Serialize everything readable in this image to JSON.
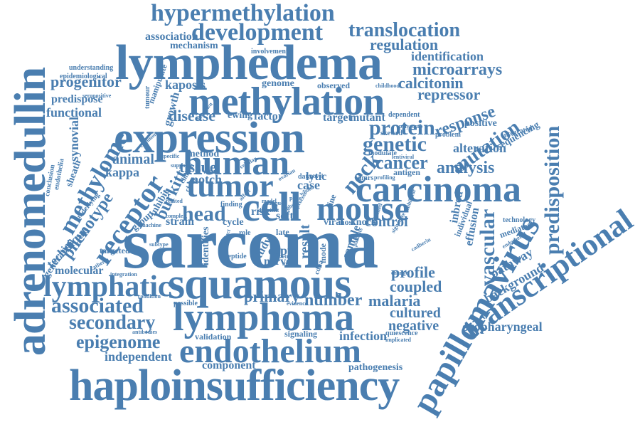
{
  "colors": {
    "word": "#4a7eb0",
    "background": "#ffffff"
  },
  "words": [
    {
      "text": "sarcoma",
      "size": "xxl",
      "rot": 0
    },
    {
      "text": "adrenomedullin",
      "size": "xl",
      "rot": -90
    },
    {
      "text": "lymphedema",
      "size": "xl",
      "rot": 0
    },
    {
      "text": "expression",
      "size": "xl",
      "rot": 0
    },
    {
      "text": "squamous",
      "size": "xl",
      "rot": 0
    },
    {
      "text": "haploinsufficiency",
      "size": "xl",
      "rot": 0
    },
    {
      "text": "methylation",
      "size": "xl",
      "rot": 0
    },
    {
      "text": "lymphoma",
      "size": "lg",
      "rot": 0
    },
    {
      "text": "endothelium",
      "size": "lg",
      "rot": 0
    },
    {
      "text": "human",
      "size": "lg",
      "rot": 0
    },
    {
      "text": "cell",
      "size": "lg",
      "rot": 0
    },
    {
      "text": "mouse",
      "size": "lg",
      "rot": 0
    },
    {
      "text": "tumor",
      "size": "lg",
      "rot": 0
    },
    {
      "text": "carcinoma",
      "size": "lg",
      "rot": 0
    },
    {
      "text": "papillomavirus",
      "size": "lg",
      "rot": -60
    },
    {
      "text": "transcriptional",
      "size": "lg",
      "rot": -35
    },
    {
      "text": "lymphatic",
      "size": "lg",
      "rot": 0
    },
    {
      "text": "hypermethylation",
      "size": "md",
      "rot": 0
    },
    {
      "text": "development",
      "size": "md",
      "rot": 0
    },
    {
      "text": "methylome",
      "size": "md",
      "rot": -60
    },
    {
      "text": "receptor",
      "size": "md",
      "rot": -55
    },
    {
      "text": "predisposition",
      "size": "md",
      "rot": -90
    },
    {
      "text": "associated",
      "size": "md",
      "rot": 0
    },
    {
      "text": "translocation",
      "size": "md",
      "rot": 0
    },
    {
      "text": "epigenome",
      "size": "md",
      "rot": 0
    },
    {
      "text": "vascular",
      "size": "md",
      "rot": -90
    },
    {
      "text": "secondary",
      "size": "md",
      "rot": 0
    },
    {
      "text": "head",
      "size": "md",
      "rot": 0
    },
    {
      "text": "genetic",
      "size": "md",
      "rot": 0
    },
    {
      "text": "protein",
      "size": "md",
      "rot": 0
    },
    {
      "text": "neck",
      "size": "md",
      "rot": -50
    },
    {
      "text": "mutation",
      "size": "md",
      "rot": -35
    },
    {
      "text": "response",
      "size": "sm",
      "rot": -20
    },
    {
      "text": "cancer",
      "size": "sm",
      "rot": 0
    },
    {
      "text": "analysis",
      "size": "sm",
      "rot": 0
    },
    {
      "text": "microarrays",
      "size": "sm",
      "rot": 0
    },
    {
      "text": "calcitonin",
      "size": "sm",
      "rot": 0
    },
    {
      "text": "repressor",
      "size": "sm",
      "rot": 0
    },
    {
      "text": "regulation",
      "size": "sm",
      "rot": 0
    },
    {
      "text": "identification",
      "size": "sm",
      "rot": 0
    },
    {
      "text": "progenitor",
      "size": "sm",
      "rot": 0
    },
    {
      "text": "kaposis",
      "size": "sm",
      "rot": 0
    },
    {
      "text": "disease",
      "size": "sm",
      "rot": 0
    },
    {
      "text": "tissue",
      "size": "sm",
      "rot": 0
    },
    {
      "text": "notch",
      "size": "sm",
      "rot": 0
    },
    {
      "text": "kappa",
      "size": "sm",
      "rot": 0
    },
    {
      "text": "animal",
      "size": "sm",
      "rot": 0
    },
    {
      "text": "phenotype",
      "size": "sm",
      "rot": -55
    },
    {
      "text": "burkitt",
      "size": "sm",
      "rot": -65
    },
    {
      "text": "technique",
      "size": "sm",
      "rot": -45
    },
    {
      "text": "profile",
      "size": "sm",
      "rot": 0
    },
    {
      "text": "coupled",
      "size": "sm",
      "rot": 0
    },
    {
      "text": "cultured",
      "size": "sm",
      "rot": 0
    },
    {
      "text": "negative",
      "size": "sm",
      "rot": 0
    },
    {
      "text": "malaria",
      "size": "sm",
      "rot": 0
    },
    {
      "text": "number",
      "size": "sm",
      "rot": 0
    },
    {
      "text": "primary",
      "size": "sm",
      "rot": 0
    },
    {
      "text": "infection",
      "size": "sm",
      "rot": 0
    },
    {
      "text": "independent",
      "size": "sm",
      "rot": 0
    },
    {
      "text": "control",
      "size": "sm",
      "rot": 0
    },
    {
      "text": "knock",
      "size": "sm",
      "rot": 0
    },
    {
      "text": "alteration",
      "size": "sm",
      "rot": 0
    },
    {
      "text": "background",
      "size": "sm",
      "rot": -30
    },
    {
      "text": "pathway",
      "size": "sm",
      "rot": -30
    },
    {
      "text": "oropharyngeal",
      "size": "sm",
      "rot": 0
    },
    {
      "text": "functional",
      "size": "sm",
      "rot": 0
    },
    {
      "text": "synovial",
      "size": "sm",
      "rot": -90
    },
    {
      "text": "molecular",
      "size": "sm",
      "rot": 0
    },
    {
      "text": "mechanism",
      "size": "sm",
      "rot": 0
    },
    {
      "text": "association",
      "size": "sm",
      "rot": 0
    },
    {
      "text": "predispose",
      "size": "sm",
      "rot": 0
    },
    {
      "text": "genome",
      "size": "sm",
      "rot": 0
    },
    {
      "text": "ewing",
      "size": "sm",
      "rot": 0
    },
    {
      "text": "factor",
      "size": "sm",
      "rot": 0
    },
    {
      "text": "target",
      "size": "sm",
      "rot": 0
    },
    {
      "text": "mutant",
      "size": "sm",
      "rot": 0
    },
    {
      "text": "growth",
      "size": "sm",
      "rot": -75
    },
    {
      "text": "positive",
      "size": "sm",
      "rot": 0
    },
    {
      "text": "sequencing",
      "size": "sm",
      "rot": -30
    },
    {
      "text": "effusion",
      "size": "sm",
      "rot": -80
    },
    {
      "text": "inbred",
      "size": "sm",
      "rot": -80
    },
    {
      "text": "component",
      "size": "sm",
      "rot": 0
    },
    {
      "text": "pathogenesis",
      "size": "sm",
      "rot": 0
    },
    {
      "text": "strain",
      "size": "sm",
      "rot": 0
    },
    {
      "text": "method",
      "size": "sm",
      "rot": 0
    },
    {
      "text": "cycle",
      "size": "sm",
      "rot": 0
    },
    {
      "text": "risk",
      "size": "sm",
      "rot": 0
    },
    {
      "text": "soft",
      "size": "sm",
      "rot": 0
    },
    {
      "text": "copy",
      "size": "sm",
      "rot": 0
    },
    {
      "text": "case",
      "size": "sm",
      "rot": 0
    },
    {
      "text": "lytic",
      "size": "sm",
      "rot": 0
    },
    {
      "text": "viral",
      "size": "sm",
      "rot": 0
    },
    {
      "text": "host",
      "size": "sm",
      "rot": 0
    },
    {
      "text": "nerve",
      "size": "sm",
      "rot": 0
    },
    {
      "text": "result",
      "size": "sm",
      "rot": -90
    },
    {
      "text": "study",
      "size": "sm",
      "rot": -60
    },
    {
      "text": "sample",
      "size": "sm",
      "rot": -70
    },
    {
      "text": "identifies",
      "size": "sm",
      "rot": -90
    },
    {
      "text": "group",
      "size": "sm",
      "rot": -40
    },
    {
      "text": "inhibit",
      "size": "sm",
      "rot": -60
    },
    {
      "text": "manipulate",
      "size": "sm",
      "rot": -70
    },
    {
      "text": "sheath",
      "size": "sm",
      "rot": -70
    },
    {
      "text": "generation",
      "size": "sm",
      "rot": -55
    },
    {
      "text": "targeted",
      "size": "sm",
      "rot": 0
    },
    {
      "text": "signaling",
      "size": "sm",
      "rot": 0
    },
    {
      "text": "validation",
      "size": "sm",
      "rot": 0
    },
    {
      "text": "finding",
      "size": "sm",
      "rot": 0
    },
    {
      "text": "antigen",
      "size": "sm",
      "rot": 0
    },
    {
      "text": "mediated",
      "size": "sm",
      "rot": -20
    },
    {
      "text": "individual",
      "size": "sm",
      "rot": -70
    },
    {
      "text": "technology",
      "size": "sm",
      "rot": 0
    },
    {
      "text": "integrated",
      "size": "sm",
      "rot": -15
    },
    {
      "text": "polycomb",
      "size": "sm",
      "rot": 0
    },
    {
      "text": "problem",
      "size": "sm",
      "rot": 0
    },
    {
      "text": "dependent",
      "size": "sm",
      "rot": 0
    },
    {
      "text": "observed",
      "size": "sm",
      "rot": 0
    },
    {
      "text": "involvement",
      "size": "sm",
      "rot": 0
    },
    {
      "text": "understanding",
      "size": "sm",
      "rot": 0
    },
    {
      "text": "epidemiological",
      "size": "sm",
      "rot": 0
    },
    {
      "text": "tumour",
      "size": "sm",
      "rot": -90
    },
    {
      "text": "seropositive",
      "size": "sm",
      "rot": 0
    },
    {
      "text": "childhood",
      "size": "sm",
      "rot": 0
    },
    {
      "text": "skewed",
      "size": "sm",
      "rot": 0
    },
    {
      "text": "conclusion",
      "size": "sm",
      "rot": -80
    },
    {
      "text": "endothelia",
      "size": "sm",
      "rot": -80
    },
    {
      "text": "underlying",
      "size": "sm",
      "rot": -50
    },
    {
      "text": "specific",
      "size": "sm",
      "rot": 0
    },
    {
      "text": "support",
      "size": "sm",
      "rot": 0
    },
    {
      "text": "common",
      "size": "sm",
      "rot": -40
    },
    {
      "text": "child",
      "size": "sm",
      "rot": -60
    },
    {
      "text": "virus",
      "size": "sm",
      "rot": 0
    },
    {
      "text": "data",
      "size": "sm",
      "rot": 0
    },
    {
      "text": "novel",
      "size": "sm",
      "rot": 0
    },
    {
      "text": "dmrs",
      "size": "sm",
      "rot": 0
    },
    {
      "text": "profiling",
      "size": "sm",
      "rot": 0
    },
    {
      "text": "modulate",
      "size": "sm",
      "rot": 0
    },
    {
      "text": "lentiviral",
      "size": "sm",
      "rot": 0
    },
    {
      "text": "line",
      "size": "sm",
      "rot": -70
    },
    {
      "text": "late",
      "size": "sm",
      "rot": 0
    },
    {
      "text": "role",
      "size": "sm",
      "rot": 0
    },
    {
      "text": "mode",
      "size": "sm",
      "rot": -90
    },
    {
      "text": "cdna",
      "size": "sm",
      "rot": -70
    },
    {
      "text": "myps",
      "size": "sm",
      "rot": 0
    },
    {
      "text": "better",
      "size": "sm",
      "rot": 0
    },
    {
      "text": "peptide",
      "size": "sm",
      "rot": 0
    },
    {
      "text": "distinct",
      "size": "sm",
      "rot": -70
    },
    {
      "text": "subtype",
      "size": "sm",
      "rot": 0
    },
    {
      "text": "machine",
      "size": "sm",
      "rot": 0
    },
    {
      "text": "catherin",
      "size": "sm",
      "rot": -30
    },
    {
      "text": "integration",
      "size": "sm",
      "rot": 0
    },
    {
      "text": "condition",
      "size": "sm",
      "rot": 0
    },
    {
      "text": "possible",
      "size": "sm",
      "rot": 0
    },
    {
      "text": "antibodies",
      "size": "sm",
      "rot": 0
    },
    {
      "text": "evidence",
      "size": "sm",
      "rot": 0
    },
    {
      "text": "quiescence",
      "size": "sm",
      "rot": 0
    },
    {
      "text": "implicated",
      "size": "sm",
      "rot": 0
    },
    {
      "text": "change",
      "size": "sm",
      "rot": 0
    },
    {
      "text": "cadherin",
      "size": "sm",
      "rot": -30
    },
    {
      "text": "endothelial",
      "size": "sm",
      "rot": -30
    },
    {
      "text": "signature",
      "size": "sm",
      "rot": -60
    },
    {
      "text": "patients",
      "size": "sm",
      "rot": -70
    },
    {
      "text": "regulated",
      "size": "sm",
      "rot": -70
    },
    {
      "text": "inhibitor",
      "size": "sm",
      "rot": -70
    },
    {
      "text": "plate",
      "size": "sm",
      "rot": 0
    },
    {
      "text": "affect",
      "size": "sm",
      "rot": -45
    },
    {
      "text": "model",
      "size": "sm",
      "rot": 0
    },
    {
      "text": "related",
      "size": "sm",
      "rot": 0
    },
    {
      "text": "complex",
      "size": "sm",
      "rot": 0
    },
    {
      "text": "clinical",
      "size": "sm",
      "rot": -60
    },
    {
      "text": "cellular",
      "size": "sm",
      "rot": -30
    },
    {
      "text": "unknown",
      "size": "sm",
      "rot": -50
    },
    {
      "text": "unique",
      "size": "sm",
      "rot": 0
    },
    {
      "text": "deficient",
      "size": "sm",
      "rot": 0
    },
    {
      "text": "process",
      "size": "sm",
      "rot": -60
    },
    {
      "text": "whole",
      "size": "sm",
      "rot": -30
    },
    {
      "text": "ovarian",
      "size": "sm",
      "rot": -30
    },
    {
      "text": "ghost",
      "size": "sm",
      "rot": -30
    }
  ]
}
